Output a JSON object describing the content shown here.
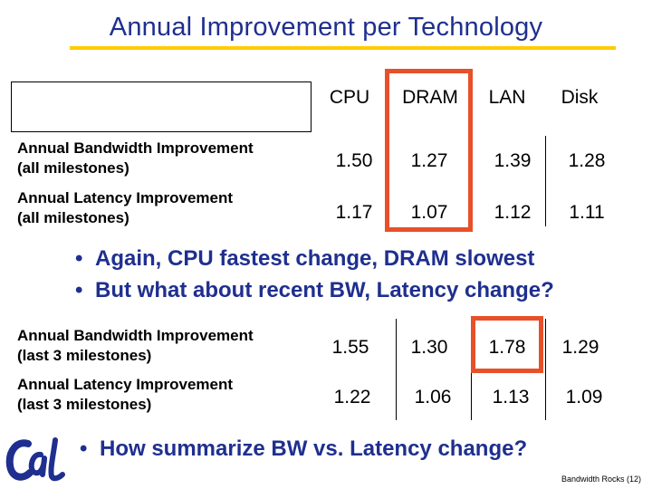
{
  "title": "Annual Improvement per Technology",
  "columns": [
    "CPU",
    "DRAM",
    "LAN",
    "Disk"
  ],
  "table_top": {
    "rows": [
      {
        "label_line1": "Annual Bandwidth Improvement",
        "label_line2": "(all milestones)",
        "values": [
          "1.50",
          "1.27",
          "1.39",
          "1.28"
        ]
      },
      {
        "label_line1": "Annual Latency Improvement",
        "label_line2": "(all milestones)",
        "values": [
          "1.17",
          "1.07",
          "1.12",
          "1.11"
        ]
      }
    ]
  },
  "bullets_mid": [
    "Again, CPU fastest change, DRAM slowest",
    "But what  about recent BW, Latency change?"
  ],
  "table_bottom": {
    "rows": [
      {
        "label_line1": "Annual Bandwidth Improvement",
        "label_line2": "(last 3 milestones)",
        "values": [
          "1.55",
          "1.30",
          "1.78",
          "1.29"
        ]
      },
      {
        "label_line1": "Annual Latency Improvement",
        "label_line2": "(last 3 milestones)",
        "values": [
          "1.22",
          "1.06",
          "1.13",
          "1.09"
        ]
      }
    ]
  },
  "bullet_bottom": "How summarize BW vs. Latency change?",
  "bullet_char": "•",
  "footer": "Bandwidth Rocks (12)",
  "colors": {
    "title": "#1f2f8f",
    "title_rule": "#ffcc00",
    "highlight": "#e8502a",
    "logo": "#1f2f8f"
  },
  "logo_icon": "cal-script-logo"
}
